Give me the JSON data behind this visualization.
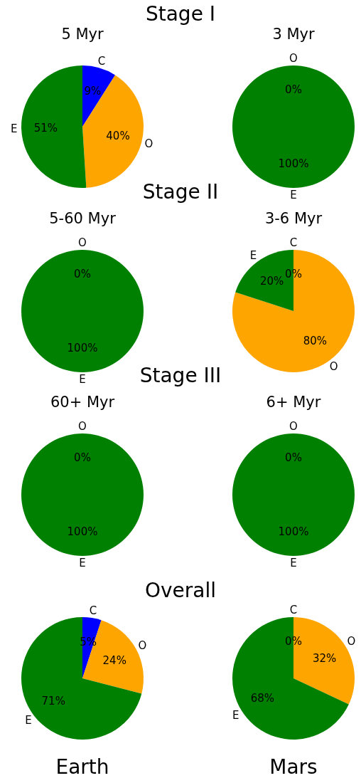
{
  "chart_data": [
    {
      "type": "pie",
      "annotations": [
        "Stage I"
      ],
      "title": "5 Myr",
      "categories": [
        "C",
        "O",
        "E"
      ],
      "values": [
        9,
        40,
        51
      ],
      "value_labels": [
        "9%",
        "40%",
        "51%"
      ],
      "colors": [
        "#0000ff",
        "#ffa500",
        "#008000"
      ]
    },
    {
      "type": "pie",
      "title": "3 Myr",
      "categories": [
        "O",
        "E"
      ],
      "values": [
        0,
        100
      ],
      "value_labels": [
        "0%",
        "100%"
      ],
      "colors": [
        "#ffa500",
        "#008000"
      ]
    },
    {
      "type": "pie",
      "annotations": [
        "Stage II"
      ],
      "title": "5-60 Myr",
      "categories": [
        "O",
        "E"
      ],
      "values": [
        0,
        100
      ],
      "value_labels": [
        "0%",
        "100%"
      ],
      "colors": [
        "#ffa500",
        "#008000"
      ]
    },
    {
      "type": "pie",
      "title": "3-6 Myr",
      "categories": [
        "C",
        "O",
        "E"
      ],
      "values": [
        0,
        80,
        20
      ],
      "value_labels": [
        "0%",
        "80%",
        "20%"
      ],
      "colors": [
        "#0000ff",
        "#ffa500",
        "#008000"
      ]
    },
    {
      "type": "pie",
      "annotations": [
        "Stage III"
      ],
      "title": "60+ Myr",
      "categories": [
        "O",
        "E"
      ],
      "values": [
        0,
        100
      ],
      "value_labels": [
        "0%",
        "100%"
      ],
      "colors": [
        "#ffa500",
        "#008000"
      ]
    },
    {
      "type": "pie",
      "title": "6+ Myr",
      "categories": [
        "O",
        "E"
      ],
      "values": [
        0,
        100
      ],
      "value_labels": [
        "0%",
        "100%"
      ],
      "colors": [
        "#ffa500",
        "#008000"
      ]
    },
    {
      "type": "pie",
      "annotations": [
        "Overall"
      ],
      "xlabel": "Earth",
      "categories": [
        "C",
        "O",
        "E"
      ],
      "values": [
        5,
        24,
        71
      ],
      "value_labels": [
        "5%",
        "24%",
        "71%"
      ],
      "colors": [
        "#0000ff",
        "#ffa500",
        "#008000"
      ]
    },
    {
      "type": "pie",
      "xlabel": "Mars",
      "categories": [
        "C",
        "O",
        "E"
      ],
      "values": [
        0,
        32,
        68
      ],
      "value_labels": [
        "0%",
        "32%",
        "68%"
      ],
      "colors": [
        "#0000ff",
        "#ffa500",
        "#008000"
      ]
    }
  ]
}
